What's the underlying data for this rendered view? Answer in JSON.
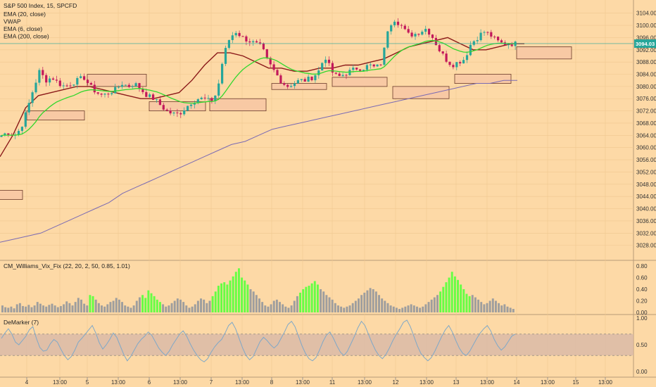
{
  "colors": {
    "background": "#fdd9a6",
    "up_candle": "#26a69a",
    "down_candle": "#c2185b",
    "ema20": "#32d72d",
    "ema200": "#7a6ab4",
    "vwap": "#8b1a1a",
    "zone_fill": "#f8c9a4",
    "zone_stroke": "#6b3a2a",
    "vix_high": "#66ff44",
    "vix_normal": "#9e9e9e",
    "demarker_line": "#7fa8c8",
    "demarker_band": "#d8b8a8",
    "price_tag": "#26a69a"
  },
  "header": {
    "title": "S&P 500 Index, 15, SPCFD",
    "indicators": [
      "EMA (20, close)",
      "VWAP",
      "EMA (6, close)",
      "EMA (200, close)"
    ]
  },
  "price_tag": "3094.03",
  "sub_panels": {
    "vix_title": "CM_Williams_Vix_Fix (22, 20, 2, 50, 0.85, 1.01)",
    "demarker_title": "DeMarker (7)"
  },
  "chart_data": [
    {
      "type": "candlestick",
      "title": "S&P 500 Index, 15, SPCFD",
      "ylim": [
        3024,
        3106
      ],
      "y_ticks": [
        "3104.00",
        "3100.00",
        "3096.00",
        "3092.00",
        "3088.00",
        "3084.00",
        "3080.00",
        "3076.00",
        "3072.00",
        "3068.00",
        "3064.00",
        "3060.00",
        "3056.00",
        "3052.00",
        "3048.00",
        "3044.00",
        "3040.00",
        "3036.00",
        "3032.00",
        "3028.00"
      ],
      "x_ticks": [
        "4",
        "13:00",
        "5",
        "13:00",
        "6",
        "13:00",
        "7",
        "13:00",
        "8",
        "13:00",
        "11",
        "13:00",
        "12",
        "13:00",
        "13",
        "13:00",
        "14",
        "13:00",
        "15",
        "13:00"
      ],
      "close_path": [
        3064,
        3065,
        3064,
        3066,
        3072,
        3079,
        3085,
        3082,
        3083,
        3081,
        3080,
        3081,
        3082,
        3083,
        3080,
        3078,
        3077,
        3078,
        3079,
        3081,
        3080,
        3081,
        3079,
        3077,
        3076,
        3074,
        3072,
        3071,
        3071,
        3073,
        3075,
        3076,
        3076,
        3075,
        3078,
        3090,
        3096,
        3098,
        3096,
        3095,
        3094,
        3093,
        3088,
        3085,
        3082,
        3080,
        3081,
        3082,
        3082,
        3083,
        3085,
        3090,
        3085,
        3083,
        3084,
        3085,
        3086,
        3086,
        3087,
        3086,
        3088,
        3100,
        3102,
        3100,
        3097,
        3097,
        3098,
        3099,
        3096,
        3092,
        3089,
        3087,
        3088,
        3089,
        3094,
        3096,
        3098,
        3097,
        3095,
        3094,
        3094,
        3094
      ],
      "vwap": [
        3057,
        3064,
        3073,
        3077,
        3078,
        3079,
        3080,
        3080,
        3079,
        3078,
        3077,
        3076,
        3076,
        3077,
        3078,
        3082,
        3087,
        3091,
        3091,
        3090,
        3088,
        3086,
        3086,
        3085,
        3085,
        3086,
        3086,
        3087,
        3087,
        3088,
        3089,
        3091,
        3093,
        3094,
        3095,
        3096,
        3094,
        3092,
        3092,
        3093,
        3094,
        3094
      ],
      "ema200": [
        3029,
        3030,
        3031,
        3032,
        3034,
        3036,
        3038,
        3040,
        3042,
        3045,
        3047,
        3049,
        3051,
        3053,
        3055,
        3057,
        3059,
        3061,
        3062,
        3064,
        3066,
        3067,
        3068,
        3069,
        3070,
        3071,
        3072,
        3073,
        3074,
        3075,
        3076,
        3077,
        3078,
        3079,
        3080,
        3081,
        3081,
        3082,
        3082
      ],
      "zones": [
        {
          "price_top": 3046,
          "price_bottom": 3043
        },
        {
          "price_top": 3072,
          "price_bottom": 3069
        },
        {
          "price_top": 3084,
          "price_bottom": 3080
        },
        {
          "price_top": 3075,
          "price_bottom": 3072
        },
        {
          "price_top": 3076,
          "price_bottom": 3072
        },
        {
          "price_top": 3081,
          "price_bottom": 3079
        },
        {
          "price_top": 3083,
          "price_bottom": 3080
        },
        {
          "price_top": 3080,
          "price_bottom": 3076
        },
        {
          "price_top": 3084,
          "price_bottom": 3081
        },
        {
          "price_top": 3093,
          "price_bottom": 3089
        }
      ]
    },
    {
      "type": "bar",
      "title": "CM_Williams_Vix_Fix (22, 20, 2, 50, 0.85, 1.01)",
      "ylim": [
        0,
        0.8
      ],
      "y_ticks": [
        "0.80",
        "0.60",
        "0.40",
        "0.20",
        "0.00"
      ],
      "values": [
        0.12,
        0.09,
        0.08,
        0.1,
        0.07,
        0.14,
        0.16,
        0.11,
        0.1,
        0.13,
        0.09,
        0.12,
        0.18,
        0.15,
        0.12,
        0.1,
        0.13,
        0.15,
        0.12,
        0.09,
        0.11,
        0.14,
        0.19,
        0.16,
        0.12,
        0.18,
        0.25,
        0.22,
        0.15,
        0.12,
        0.3,
        0.28,
        0.22,
        0.16,
        0.12,
        0.1,
        0.14,
        0.18,
        0.2,
        0.25,
        0.22,
        0.18,
        0.12,
        0.1,
        0.08,
        0.12,
        0.2,
        0.26,
        0.3,
        0.25,
        0.38,
        0.33,
        0.28,
        0.22,
        0.18,
        0.14,
        0.1,
        0.12,
        0.16,
        0.2,
        0.24,
        0.22,
        0.18,
        0.12,
        0.08,
        0.1,
        0.14,
        0.2,
        0.24,
        0.22,
        0.16,
        0.2,
        0.28,
        0.36,
        0.46,
        0.5,
        0.52,
        0.48,
        0.55,
        0.62,
        0.7,
        0.76,
        0.6,
        0.55,
        0.48,
        0.4,
        0.36,
        0.3,
        0.24,
        0.18,
        0.12,
        0.1,
        0.14,
        0.2,
        0.22,
        0.18,
        0.14,
        0.1,
        0.08,
        0.12,
        0.2,
        0.28,
        0.34,
        0.4,
        0.44,
        0.46,
        0.5,
        0.54,
        0.48,
        0.4,
        0.36,
        0.3,
        0.26,
        0.22,
        0.16,
        0.12,
        0.1,
        0.08,
        0.1,
        0.12,
        0.16,
        0.2,
        0.24,
        0.3,
        0.34,
        0.38,
        0.42,
        0.4,
        0.36,
        0.3,
        0.24,
        0.2,
        0.16,
        0.12,
        0.1,
        0.08,
        0.06,
        0.08,
        0.1,
        0.12,
        0.14,
        0.12,
        0.1,
        0.08,
        0.1,
        0.14,
        0.18,
        0.22,
        0.26,
        0.3,
        0.36,
        0.44,
        0.52,
        0.6,
        0.7,
        0.62,
        0.56,
        0.48,
        0.4,
        0.32,
        0.28,
        0.3,
        0.26,
        0.22,
        0.18,
        0.14,
        0.16,
        0.2,
        0.24,
        0.2,
        0.16,
        0.12,
        0.14,
        0.1,
        0.08,
        0.06
      ],
      "highlight_ranges": [
        [
          30,
          31
        ],
        [
          48,
          54
        ],
        [
          72,
          84
        ],
        [
          102,
          108
        ],
        [
          150,
          160
        ]
      ]
    },
    {
      "type": "line",
      "title": "DeMarker (7)",
      "ylim": [
        0,
        1
      ],
      "y_ticks": [
        "1.00",
        "0.50",
        "0.00"
      ],
      "bands": [
        0.3,
        0.7
      ],
      "values": [
        0.62,
        0.72,
        0.8,
        0.7,
        0.55,
        0.5,
        0.58,
        0.66,
        0.78,
        0.84,
        0.62,
        0.45,
        0.38,
        0.4,
        0.52,
        0.6,
        0.55,
        0.42,
        0.3,
        0.22,
        0.28,
        0.4,
        0.55,
        0.62,
        0.7,
        0.78,
        0.86,
        0.72,
        0.54,
        0.42,
        0.5,
        0.6,
        0.72,
        0.64,
        0.48,
        0.32,
        0.2,
        0.28,
        0.4,
        0.52,
        0.6,
        0.66,
        0.74,
        0.68,
        0.56,
        0.44,
        0.36,
        0.3,
        0.38,
        0.5,
        0.6,
        0.7,
        0.76,
        0.66,
        0.52,
        0.4,
        0.3,
        0.22,
        0.18,
        0.24,
        0.36,
        0.46,
        0.54,
        0.6,
        0.72,
        0.86,
        0.92,
        0.8,
        0.62,
        0.44,
        0.3,
        0.22,
        0.28,
        0.42,
        0.56,
        0.64,
        0.58,
        0.5,
        0.44,
        0.5,
        0.62,
        0.74,
        0.88,
        0.94,
        0.84,
        0.66,
        0.48,
        0.34,
        0.24,
        0.2,
        0.26,
        0.4,
        0.56,
        0.68,
        0.74,
        0.62,
        0.48,
        0.36,
        0.3,
        0.38,
        0.52,
        0.66,
        0.82,
        0.94,
        0.86,
        0.7,
        0.54,
        0.4,
        0.3,
        0.24,
        0.32,
        0.44,
        0.58,
        0.7,
        0.8,
        0.92,
        0.96,
        0.84,
        0.66,
        0.48,
        0.34,
        0.26,
        0.2,
        0.26,
        0.38,
        0.52,
        0.66,
        0.78,
        0.86,
        0.74,
        0.58,
        0.44,
        0.34,
        0.3,
        0.38,
        0.5,
        0.62,
        0.72,
        0.8,
        0.86,
        0.76,
        0.6,
        0.48,
        0.4,
        0.46,
        0.56,
        0.66,
        0.7
      ]
    }
  ]
}
